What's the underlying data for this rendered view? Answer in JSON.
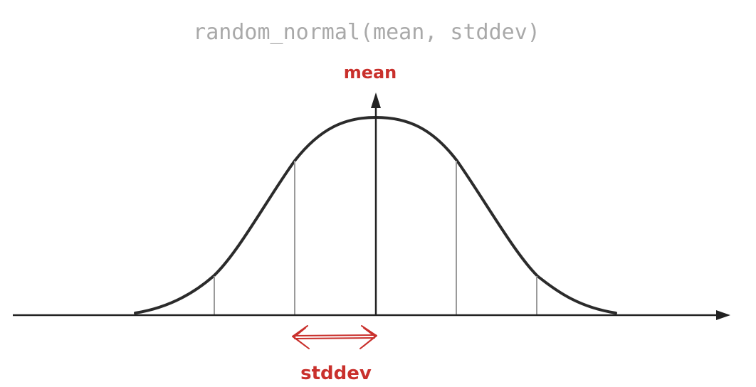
{
  "title": "random_normal(mean, stddev)",
  "labels": {
    "mean": "mean",
    "stddev": "stddev"
  },
  "colors": {
    "title": "#a9a9a9",
    "accent": "#c9302c",
    "curve": "#2b2b2b",
    "axis": "#222222",
    "guides": "#9a9a9a"
  }
}
